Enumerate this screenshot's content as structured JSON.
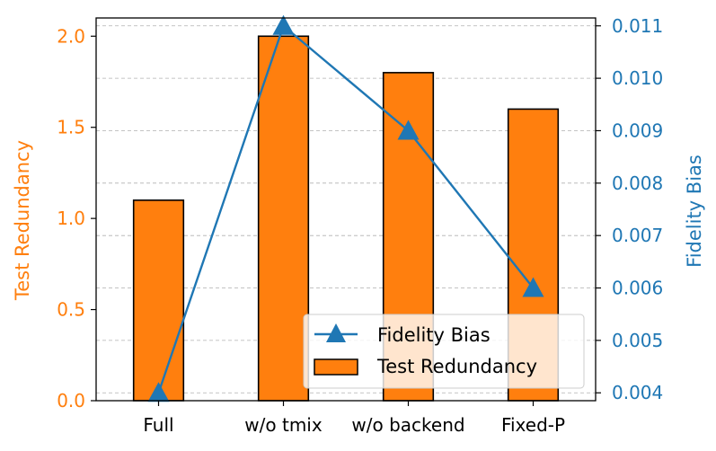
{
  "chart_data": {
    "type": "bar",
    "categories": [
      "Full",
      "w/o tmix",
      "w/o backend",
      "Fixed-P"
    ],
    "series": [
      {
        "name": "Test Redundancy",
        "kind": "bar",
        "axis": "left",
        "color": "#ff7f0e",
        "values": [
          1.1,
          2.0,
          1.8,
          1.6
        ]
      },
      {
        "name": "Fidelity Bias",
        "kind": "line",
        "marker": "triangle",
        "axis": "right",
        "color": "#1f77b4",
        "values": [
          0.004,
          0.011,
          0.009,
          0.006
        ]
      }
    ],
    "ylabel_left": "Test Redundancy",
    "ylabel_right": "Fidelity Bias",
    "ylim_left": [
      0,
      2.1
    ],
    "ylim_right": [
      0.00385,
      0.01115
    ],
    "yticks_left": [
      "0.0",
      "0.5",
      "1.0",
      "1.5",
      "2.0"
    ],
    "yticks_right": [
      "0.004",
      "0.005",
      "0.006",
      "0.007",
      "0.008",
      "0.009",
      "0.010",
      "0.011"
    ],
    "grid": "horizontal dashed (right axis)",
    "legend_placement": "lower-right"
  }
}
